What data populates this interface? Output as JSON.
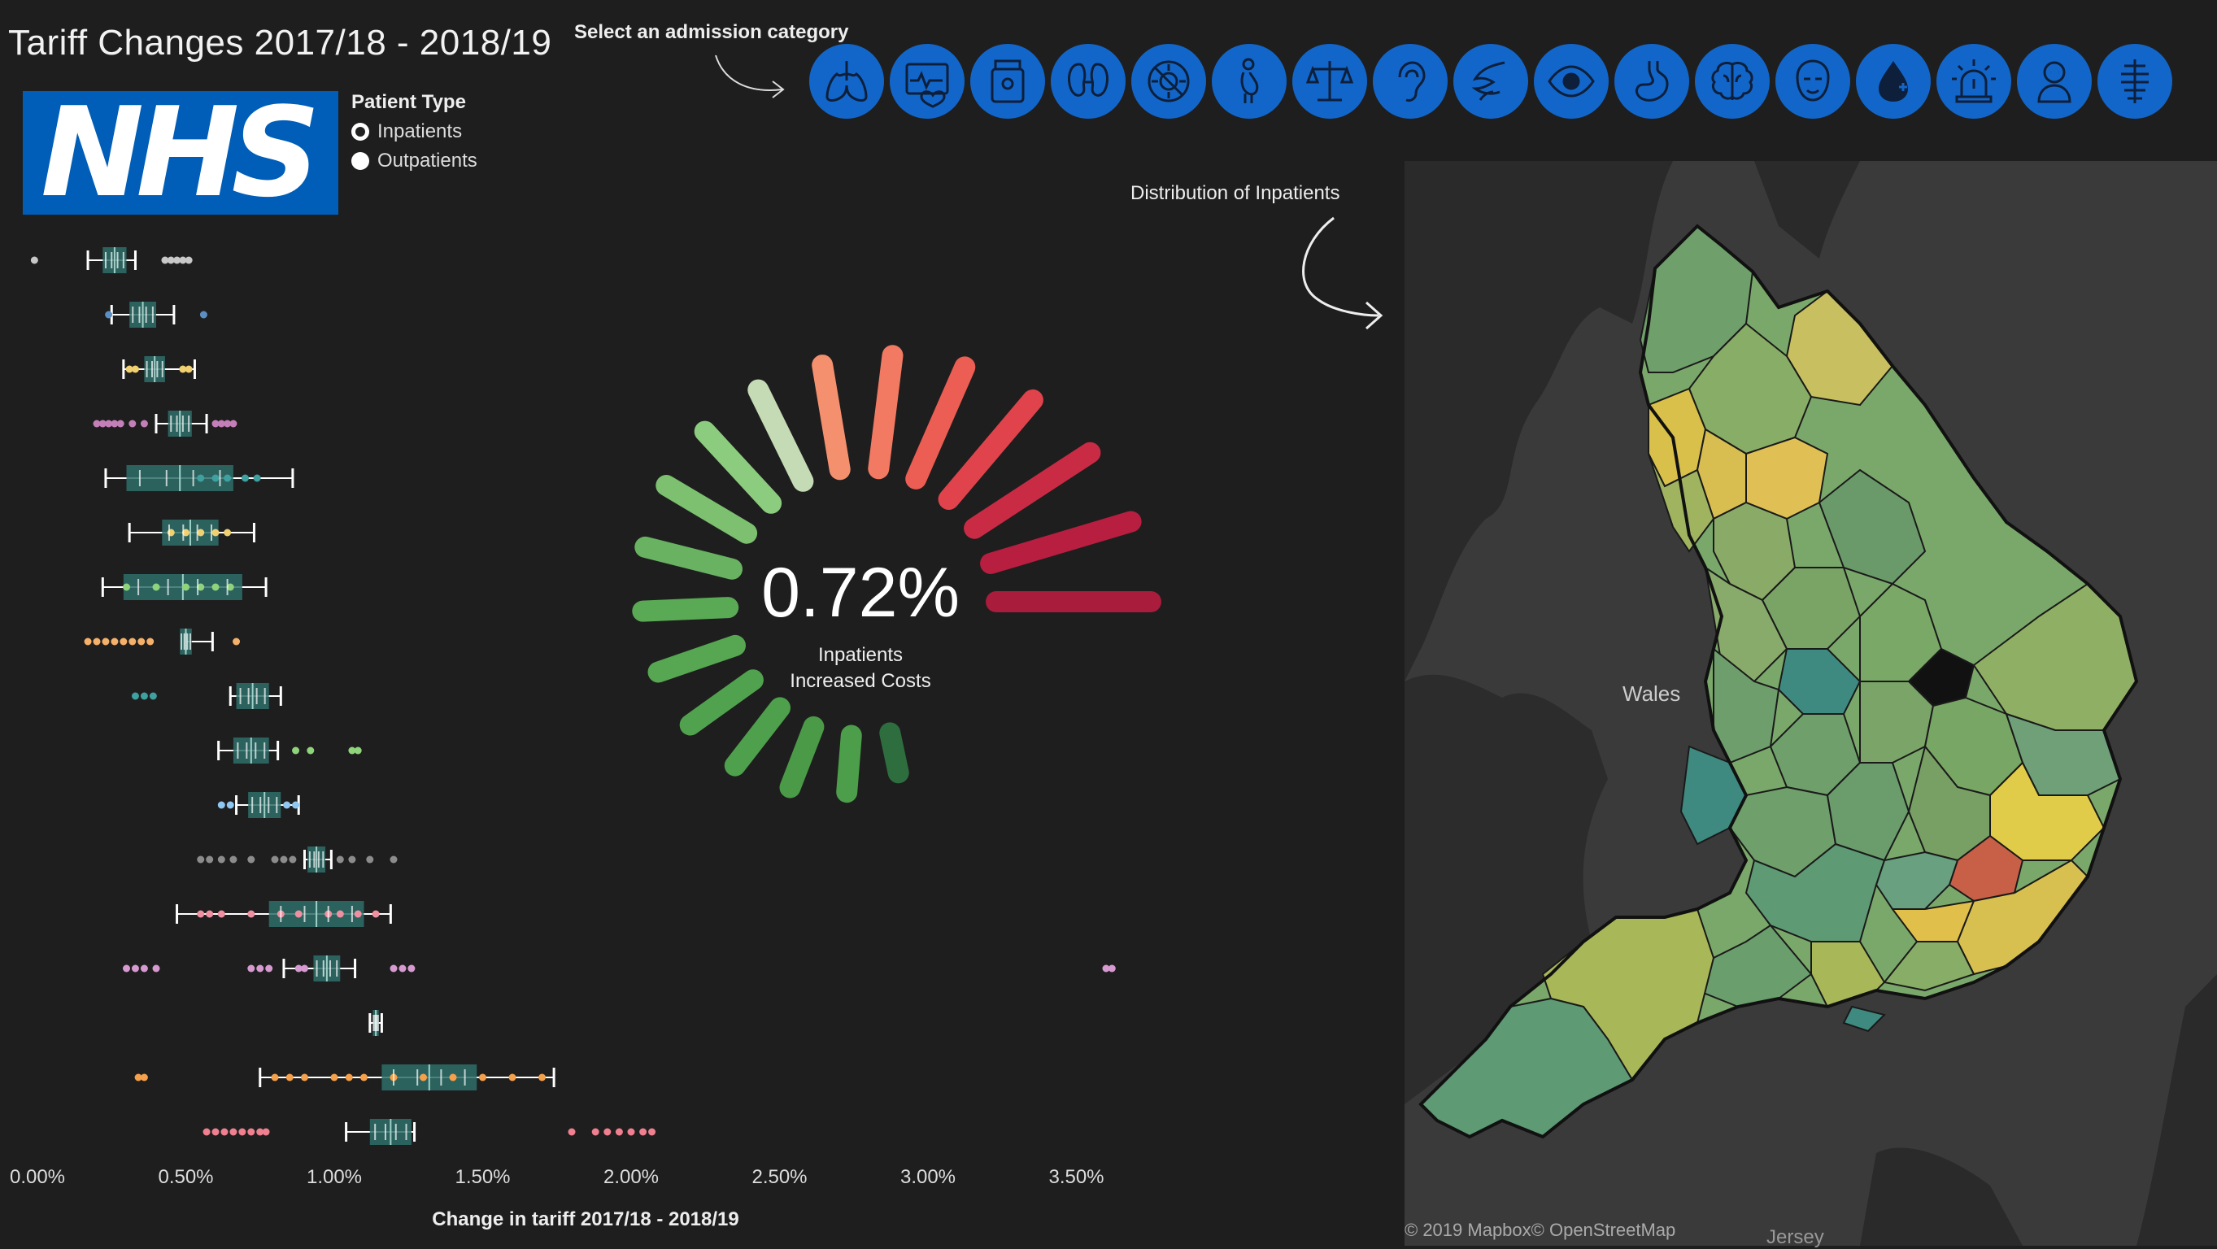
{
  "title": "Tariff Changes 2017/18 - 2018/19",
  "logo_text": "NHS",
  "patient_type": {
    "header": "Patient Type",
    "options": [
      "Inpatients",
      "Outpatients"
    ],
    "selected": "Inpatients"
  },
  "category_selector": {
    "label": "Select an admission category",
    "icons": [
      "lungs-icon",
      "heart-monitor-icon",
      "medicine-bottle-icon",
      "kidneys-icon",
      "no-virus-icon",
      "pregnancy-icon",
      "scales-icon",
      "ear-icon",
      "digestive-icon",
      "eye-icon",
      "stomach-icon",
      "brain-icon",
      "face-icon",
      "blood-drop-icon",
      "emergency-light-icon",
      "baby-icon",
      "spine-icon"
    ]
  },
  "map": {
    "label": "Distribution of Inpatients",
    "place_label": "Wales",
    "place_label_2": "Jersey",
    "credit": "© 2019 Mapbox© OpenStreetMap"
  },
  "gauge": {
    "value_text": "0.72%",
    "caption_line1": "Inpatients",
    "caption_line2": "Increased Costs",
    "colors": [
      "#2e6e3e",
      "#4d9e4a",
      "#4a9a48",
      "#4ea04c",
      "#51a24e",
      "#56a652",
      "#5aa955",
      "#68b262",
      "#7cc070",
      "#8ccc7e",
      "#c5dbb6",
      "#f5906f",
      "#f27a62",
      "#ec5d53",
      "#e0434b",
      "#c92b45",
      "#b81e40",
      "#a91c3c"
    ]
  },
  "colors": {
    "accent": "#1266c9",
    "nhs": "#005eb8",
    "background": "#1e1e1e"
  },
  "chart_data": {
    "type": "boxplot",
    "xlabel": "Change in tariff 2017/18 - 2018/19",
    "xlim": [
      0,
      3.8
    ],
    "ticks": [
      0,
      0.5,
      1.0,
      1.5,
      2.0,
      2.5,
      3.0,
      3.5
    ],
    "tick_labels": [
      "0.00%",
      "0.50%",
      "1.00%",
      "1.50%",
      "2.00%",
      "2.50%",
      "3.00%",
      "3.50%"
    ],
    "rows": [
      {
        "color": "#c8c8c8",
        "whisker": [
          0.17,
          0.33
        ],
        "box": [
          0.22,
          0.3
        ],
        "points": [
          -0.01,
          0.43,
          0.45,
          0.47,
          0.49,
          0.51
        ]
      },
      {
        "color": "#5b8fc4",
        "whisker": [
          0.25,
          0.46
        ],
        "box": [
          0.31,
          0.4
        ],
        "points": [
          0.24,
          0.56
        ]
      },
      {
        "color": "#f0d070",
        "whisker": [
          0.29,
          0.53
        ],
        "box": [
          0.36,
          0.43
        ],
        "points": [
          0.31,
          0.33,
          0.49,
          0.51
        ]
      },
      {
        "color": "#c47fb9",
        "whisker": [
          0.4,
          0.57
        ],
        "box": [
          0.44,
          0.52
        ],
        "points": [
          0.2,
          0.22,
          0.24,
          0.26,
          0.28,
          0.32,
          0.36,
          0.6,
          0.62,
          0.64,
          0.66
        ]
      },
      {
        "color": "#3fa0a0",
        "whisker": [
          0.23,
          0.86
        ],
        "box": [
          0.3,
          0.66
        ],
        "points": [
          0.55,
          0.6,
          0.64,
          0.7,
          0.74
        ]
      },
      {
        "color": "#f0d070",
        "whisker": [
          0.31,
          0.73
        ],
        "box": [
          0.42,
          0.61
        ],
        "points": [
          0.45,
          0.5,
          0.55,
          0.6,
          0.64
        ]
      },
      {
        "color": "#8fd37a",
        "whisker": [
          0.22,
          0.77
        ],
        "box": [
          0.29,
          0.69
        ],
        "points": [
          0.3,
          0.4,
          0.5,
          0.55,
          0.6,
          0.65
        ]
      },
      {
        "color": "#f5b06a",
        "whisker": [
          0.5,
          0.59
        ],
        "box": [
          0.48,
          0.52
        ],
        "points": [
          0.17,
          0.2,
          0.23,
          0.26,
          0.29,
          0.32,
          0.35,
          0.38,
          0.67
        ]
      },
      {
        "color": "#3fa0a0",
        "whisker": [
          0.65,
          0.82
        ],
        "box": [
          0.67,
          0.78
        ],
        "points": [
          0.33,
          0.36,
          0.39
        ]
      },
      {
        "color": "#8fd37a",
        "whisker": [
          0.61,
          0.81
        ],
        "box": [
          0.66,
          0.78
        ],
        "points": [
          0.87,
          0.92,
          1.06,
          1.08
        ]
      },
      {
        "color": "#8ec7f2",
        "whisker": [
          0.67,
          0.88
        ],
        "box": [
          0.71,
          0.82
        ],
        "points": [
          0.62,
          0.65,
          0.84,
          0.87
        ]
      },
      {
        "color": "#8c8c8c",
        "whisker": [
          0.9,
          0.99
        ],
        "box": [
          0.91,
          0.97
        ],
        "points": [
          0.55,
          0.58,
          0.62,
          0.66,
          0.72,
          0.8,
          0.83,
          0.86,
          1.02,
          1.06,
          1.12,
          1.2
        ]
      },
      {
        "color": "#f08fa0",
        "whisker": [
          0.47,
          1.19
        ],
        "box": [
          0.78,
          1.1
        ],
        "points": [
          0.55,
          0.58,
          0.62,
          0.72,
          0.82,
          0.88,
          0.98,
          1.02,
          1.08,
          1.14
        ]
      },
      {
        "color": "#d79ad0",
        "whisker": [
          0.83,
          1.07
        ],
        "box": [
          0.93,
          1.02
        ],
        "points": [
          0.3,
          0.33,
          0.36,
          0.4,
          0.72,
          0.75,
          0.78,
          0.88,
          0.9,
          1.2,
          1.23,
          1.26,
          3.6,
          3.62
        ]
      },
      {
        "color": "#f07070",
        "whisker": [
          1.12,
          1.16
        ],
        "box": [
          1.13,
          1.15
        ],
        "points": []
      },
      {
        "color": "#f5a04a",
        "whisker": [
          0.75,
          1.74
        ],
        "box": [
          1.16,
          1.48
        ],
        "points": [
          0.34,
          0.36,
          0.8,
          0.85,
          0.9,
          1.0,
          1.05,
          1.1,
          1.2,
          1.3,
          1.4,
          1.5,
          1.6,
          1.7
        ]
      },
      {
        "color": "#f08090",
        "whisker": [
          1.04,
          1.27
        ],
        "box": [
          1.12,
          1.26
        ],
        "points": [
          0.57,
          0.6,
          0.63,
          0.66,
          0.69,
          0.72,
          0.75,
          0.77,
          1.8,
          1.88,
          1.92,
          1.96,
          2.0,
          2.04,
          2.07
        ]
      }
    ]
  }
}
